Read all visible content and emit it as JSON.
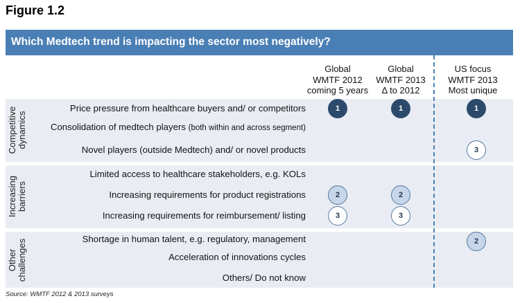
{
  "figure_label": "Figure 1.2",
  "banner_title": "Which Medtech trend is impacting the sector most negatively?",
  "columns": [
    {
      "lines": [
        "Global",
        "WMTF  2012",
        "coming 5 years"
      ]
    },
    {
      "lines": [
        "Global",
        "WMTF 2013",
        "Δ to 2012"
      ]
    },
    {
      "lines": [
        "US focus",
        "WMTF 2013",
        "Most unique"
      ]
    }
  ],
  "groups": [
    {
      "label_lines": [
        "Competitive",
        "dynamics"
      ]
    },
    {
      "label_lines": [
        "Increasing",
        "barriers"
      ]
    },
    {
      "label_lines": [
        "Other",
        "challenges"
      ]
    }
  ],
  "rows": [
    {
      "label": "Price pressure from healthcare buyers and/ or competitors",
      "ranks": [
        1,
        1,
        1
      ]
    },
    {
      "label": "Consolidation of medtech players",
      "label_note": "(both within and across segment)",
      "ranks": [
        null,
        null,
        null
      ]
    },
    {
      "label": "Novel players (outside Medtech) and/ or novel products",
      "ranks": [
        null,
        null,
        3
      ]
    },
    {
      "label": "Limited access to healthcare stakeholders, e.g. KOLs",
      "ranks": [
        null,
        null,
        null
      ]
    },
    {
      "label": "Increasing requirements for product registrations",
      "ranks": [
        2,
        2,
        null
      ]
    },
    {
      "label": "Increasing requirements for reimbursement/ listing",
      "ranks": [
        3,
        3,
        null
      ]
    },
    {
      "label": "Shortage in human talent, e.g. regulatory, management",
      "ranks": [
        null,
        null,
        2
      ]
    },
    {
      "label": "Acceleration of innovations cycles",
      "ranks": [
        null,
        null,
        null
      ]
    },
    {
      "label": "Others/ Do not know",
      "ranks": [
        null,
        null,
        null
      ]
    }
  ],
  "colors": {
    "banner": "#4a7fb5",
    "band": "#e9edf3",
    "rank_1": "#2c4a6b",
    "rank_2": "#c7d6e8",
    "rank_3": "#ffffff"
  },
  "source": "Source: WMTF 2012 & 2013 surveys"
}
